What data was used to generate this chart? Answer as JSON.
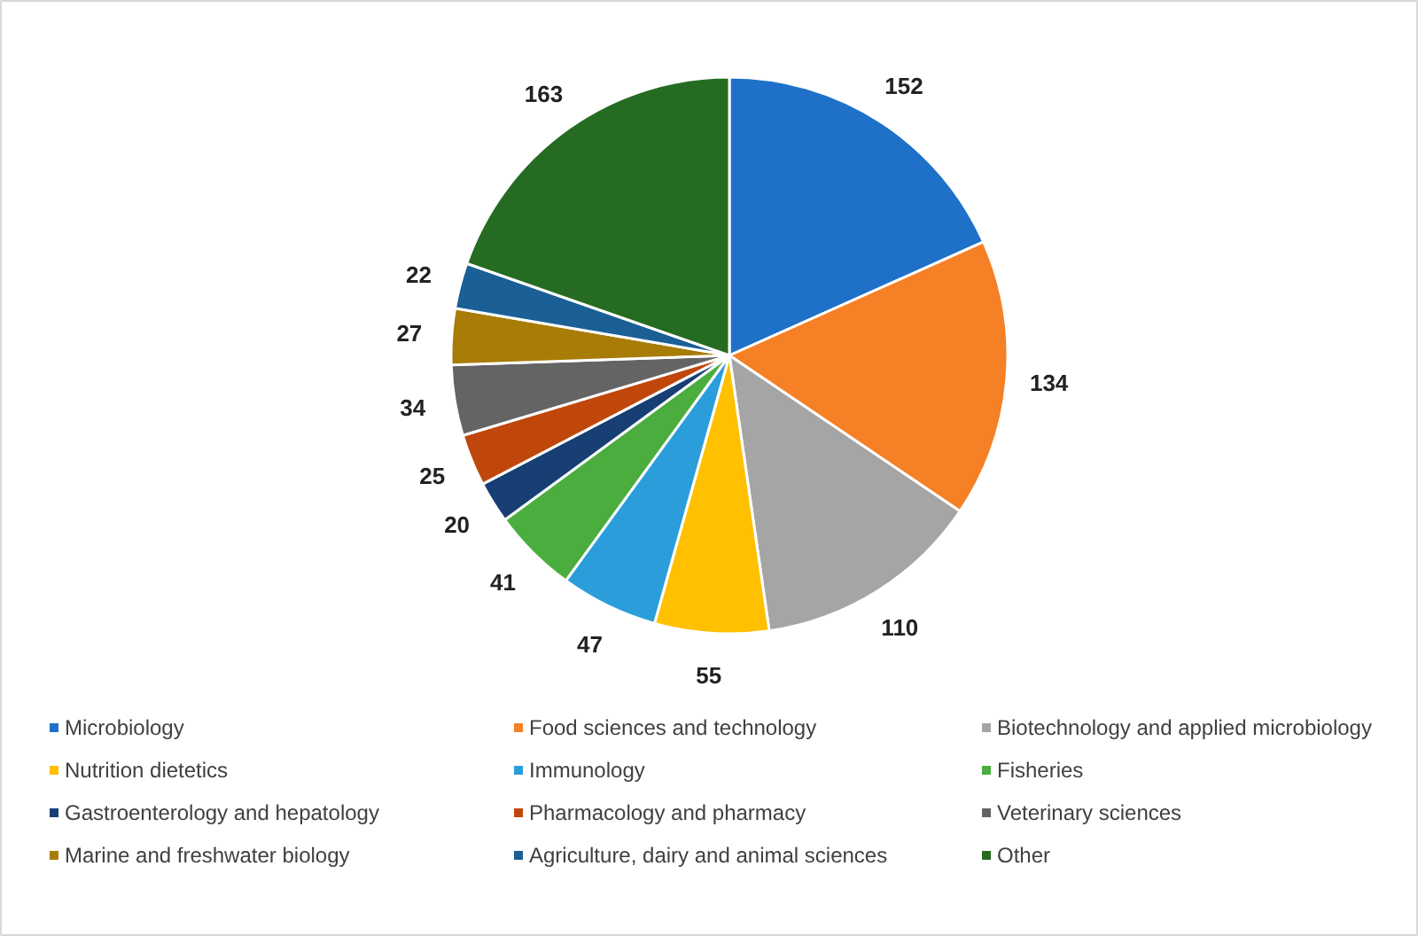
{
  "chart_data": {
    "type": "pie",
    "categories": [
      "Microbiology",
      "Food sciences and technology",
      "Biotechnology and applied microbiology",
      "Nutrition dietetics",
      "Immunology",
      "Fisheries",
      "Gastroenterology and hepatology",
      "Pharmacology and pharmacy",
      "Veterinary sciences",
      "Marine and freshwater biology",
      "Agriculture, dairy and animal sciences",
      "Other"
    ],
    "values": [
      152,
      134,
      110,
      55,
      47,
      41,
      20,
      25,
      34,
      27,
      22,
      163
    ],
    "colors": [
      "#1f70c8",
      "#f58025",
      "#a5a5a5",
      "#ffc000",
      "#2b9ddb",
      "#4aad3e",
      "#173f73",
      "#c0470c",
      "#646464",
      "#a87c06",
      "#1a5f96",
      "#266b22"
    ],
    "data_labels": true,
    "legend": "bottom"
  }
}
